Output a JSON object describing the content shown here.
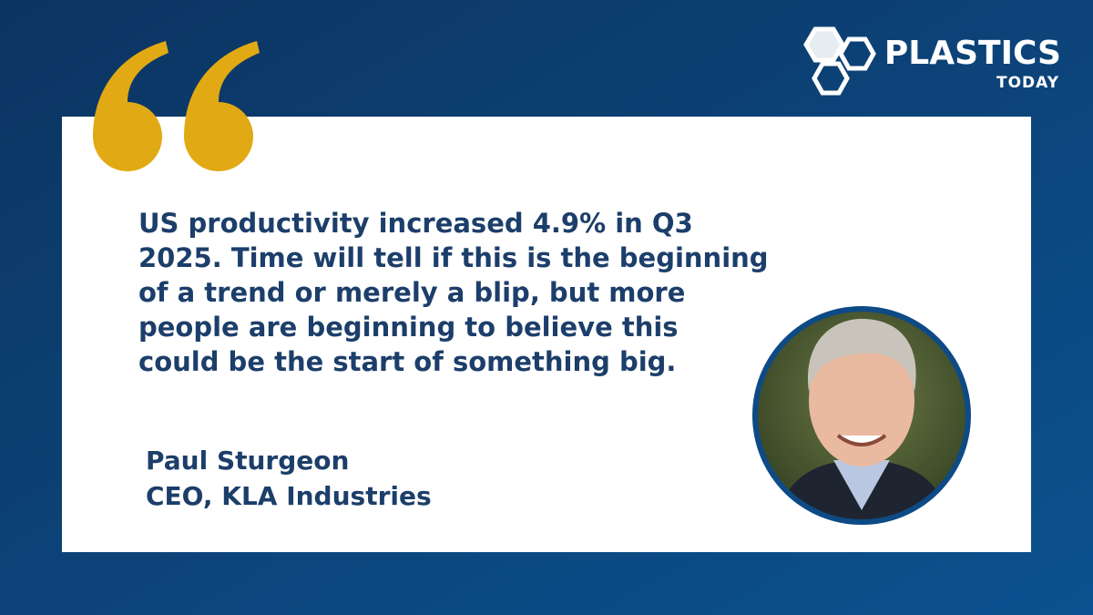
{
  "logo": {
    "name": "PLASTICS",
    "tagline": "TODAY"
  },
  "quote": {
    "lines": [
      "US productivity increased 4.9% in Q3",
      "2025. Time will tell if this is the beginning",
      "of a trend or merely a blip, but more",
      "people are beginning to believe this",
      "could be the start of something big."
    ]
  },
  "attribution": {
    "name": "Paul Sturgeon",
    "role": "CEO, KLA Industries"
  }
}
